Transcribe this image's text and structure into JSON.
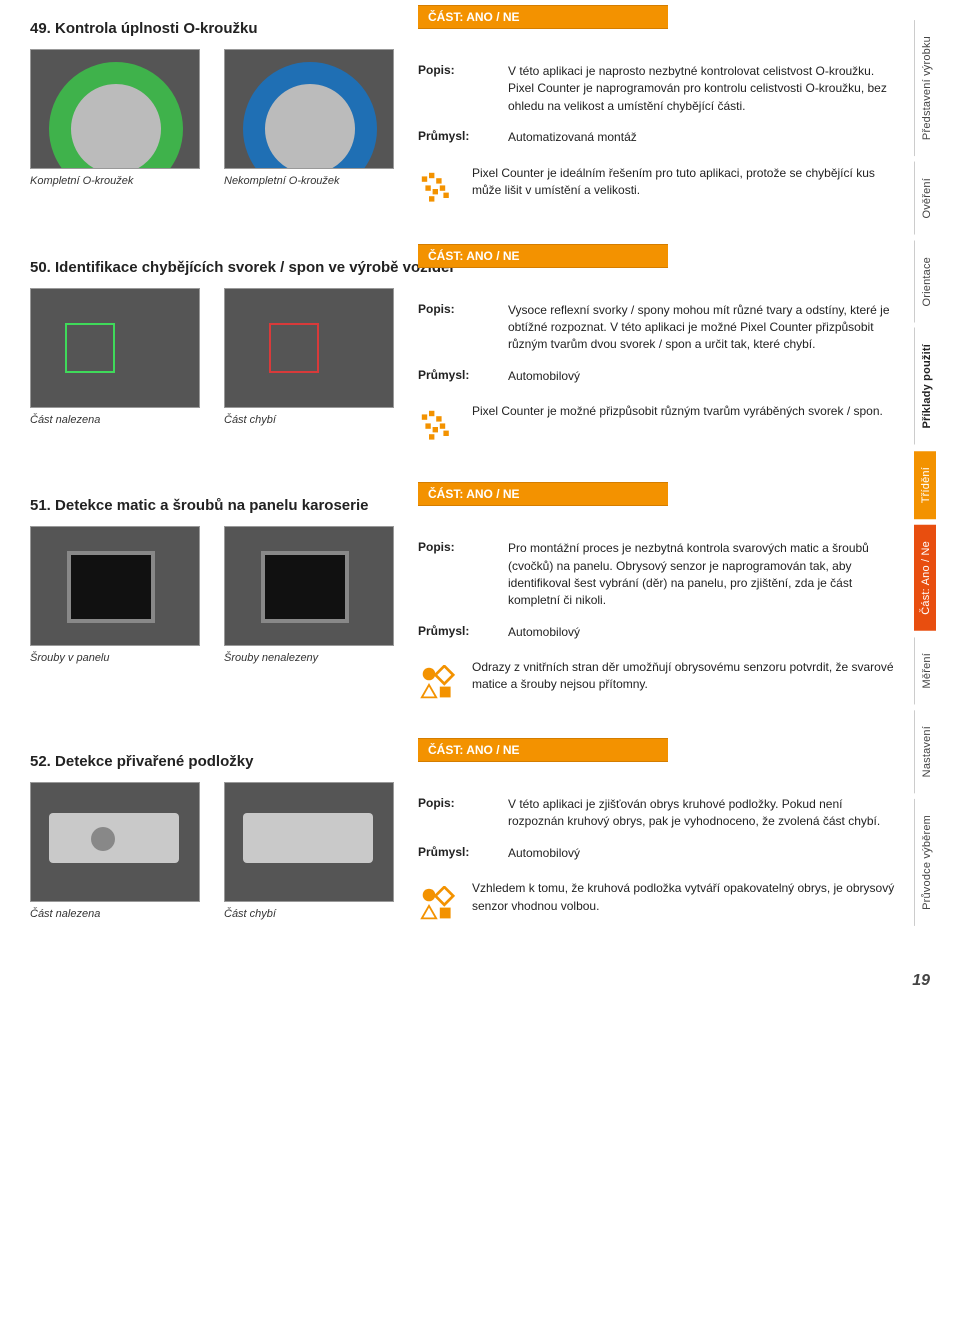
{
  "colors": {
    "orange": "#f39200",
    "deepOrange": "#e84e0f",
    "text": "#222222"
  },
  "sidebar": [
    {
      "label": "Představení výrobku",
      "style": "plain"
    },
    {
      "label": "Ověření",
      "style": "plain"
    },
    {
      "label": "Orientace",
      "style": "plain"
    },
    {
      "label": "Příklady použití",
      "style": "priklady"
    },
    {
      "label": "Třídění",
      "style": "active-1"
    },
    {
      "label": "Část: Ano / Ne",
      "style": "active-2"
    },
    {
      "label": "Měření",
      "style": "plain"
    },
    {
      "label": "Nastavení",
      "style": "plain"
    },
    {
      "label": "Průvodce výběrem",
      "style": "plain"
    }
  ],
  "tag": "ČÁST: ANO / NE",
  "labels": {
    "popis": "Popis:",
    "prumysl": "Průmysl:"
  },
  "entries": [
    {
      "title": "49. Kontrola úplnosti O-kroužku",
      "img1_caption": "Kompletní O-kroužek",
      "img2_caption": "Nekompletní O-kroužek",
      "img1_class": "oring-green",
      "img2_class": "oring-blue",
      "popis": "V této aplikaci je naprosto nezbytné kontrolovat celistvost O-kroužku. Pixel Counter je naprogramován pro kontrolu celistvosti O-kroužku, bez ohledu na velikost a umístění chybějící části.",
      "prumysl": "Automatizovaná montáž",
      "note": "Pixel Counter je ideálním řešením pro tuto aplikaci, protože se chybějící kus může lišit v umístění a velikosti.",
      "icon": "pixel"
    },
    {
      "title": "50. Identifikace chybějících svorek / spon ve výrobě vozidel",
      "img1_caption": "Část nalezena",
      "img2_caption": "Část chybí",
      "img1_class": "clip-ok",
      "img2_class": "clip-miss",
      "popis": "Vysoce reflexní svorky / spony mohou mít různé tvary a odstíny, které je obtížné rozpoznat. V této aplikaci je možné Pixel Counter přizpůsobit různým tvarům dvou svorek / spon a určit tak, které chybí.",
      "prumysl": "Automobilový",
      "note": "Pixel Counter je možné přizpůsobit různým tvarům vyráběných svorek / spon.",
      "icon": "pixel"
    },
    {
      "title": "51. Detekce matic a šroubů na panelu karoserie",
      "img1_caption": "Šrouby v panelu",
      "img2_caption": "Šrouby nenalezeny",
      "img1_class": "panel-ok",
      "img2_class": "panel-miss",
      "popis": "Pro montážní proces je nezbytná kontrola svarových matic a šroubů (cvočků) na panelu. Obrysový senzor je naprogramován tak, aby identifikoval šest vybrání (děr) na panelu, pro zjištění, zda je část kompletní či nikoli.",
      "prumysl": "Automobilový",
      "note": "Odrazy z vnitřních stran děr umožňují obrysovému senzoru potvrdit, že svarové matice a šrouby nejsou přítomny.",
      "icon": "shapes"
    },
    {
      "title": "52. Detekce přivařené podložky",
      "img1_caption": "Část nalezena",
      "img2_caption": "Část chybí",
      "img1_class": "washer-ok",
      "img2_class": "washer-miss",
      "popis": "V této aplikaci je zjišťován obrys kruhové podložky. Pokud není rozpoznán kruhový obrys, pak je vyhodnoceno, že zvolená část chybí.",
      "prumysl": "Automobilový",
      "note": "Vzhledem k tomu, že kruhová podložka vytváří opakovatelný obrys, je obrysový senzor vhodnou volbou.",
      "icon": "shapes"
    }
  ],
  "page_number": "19"
}
